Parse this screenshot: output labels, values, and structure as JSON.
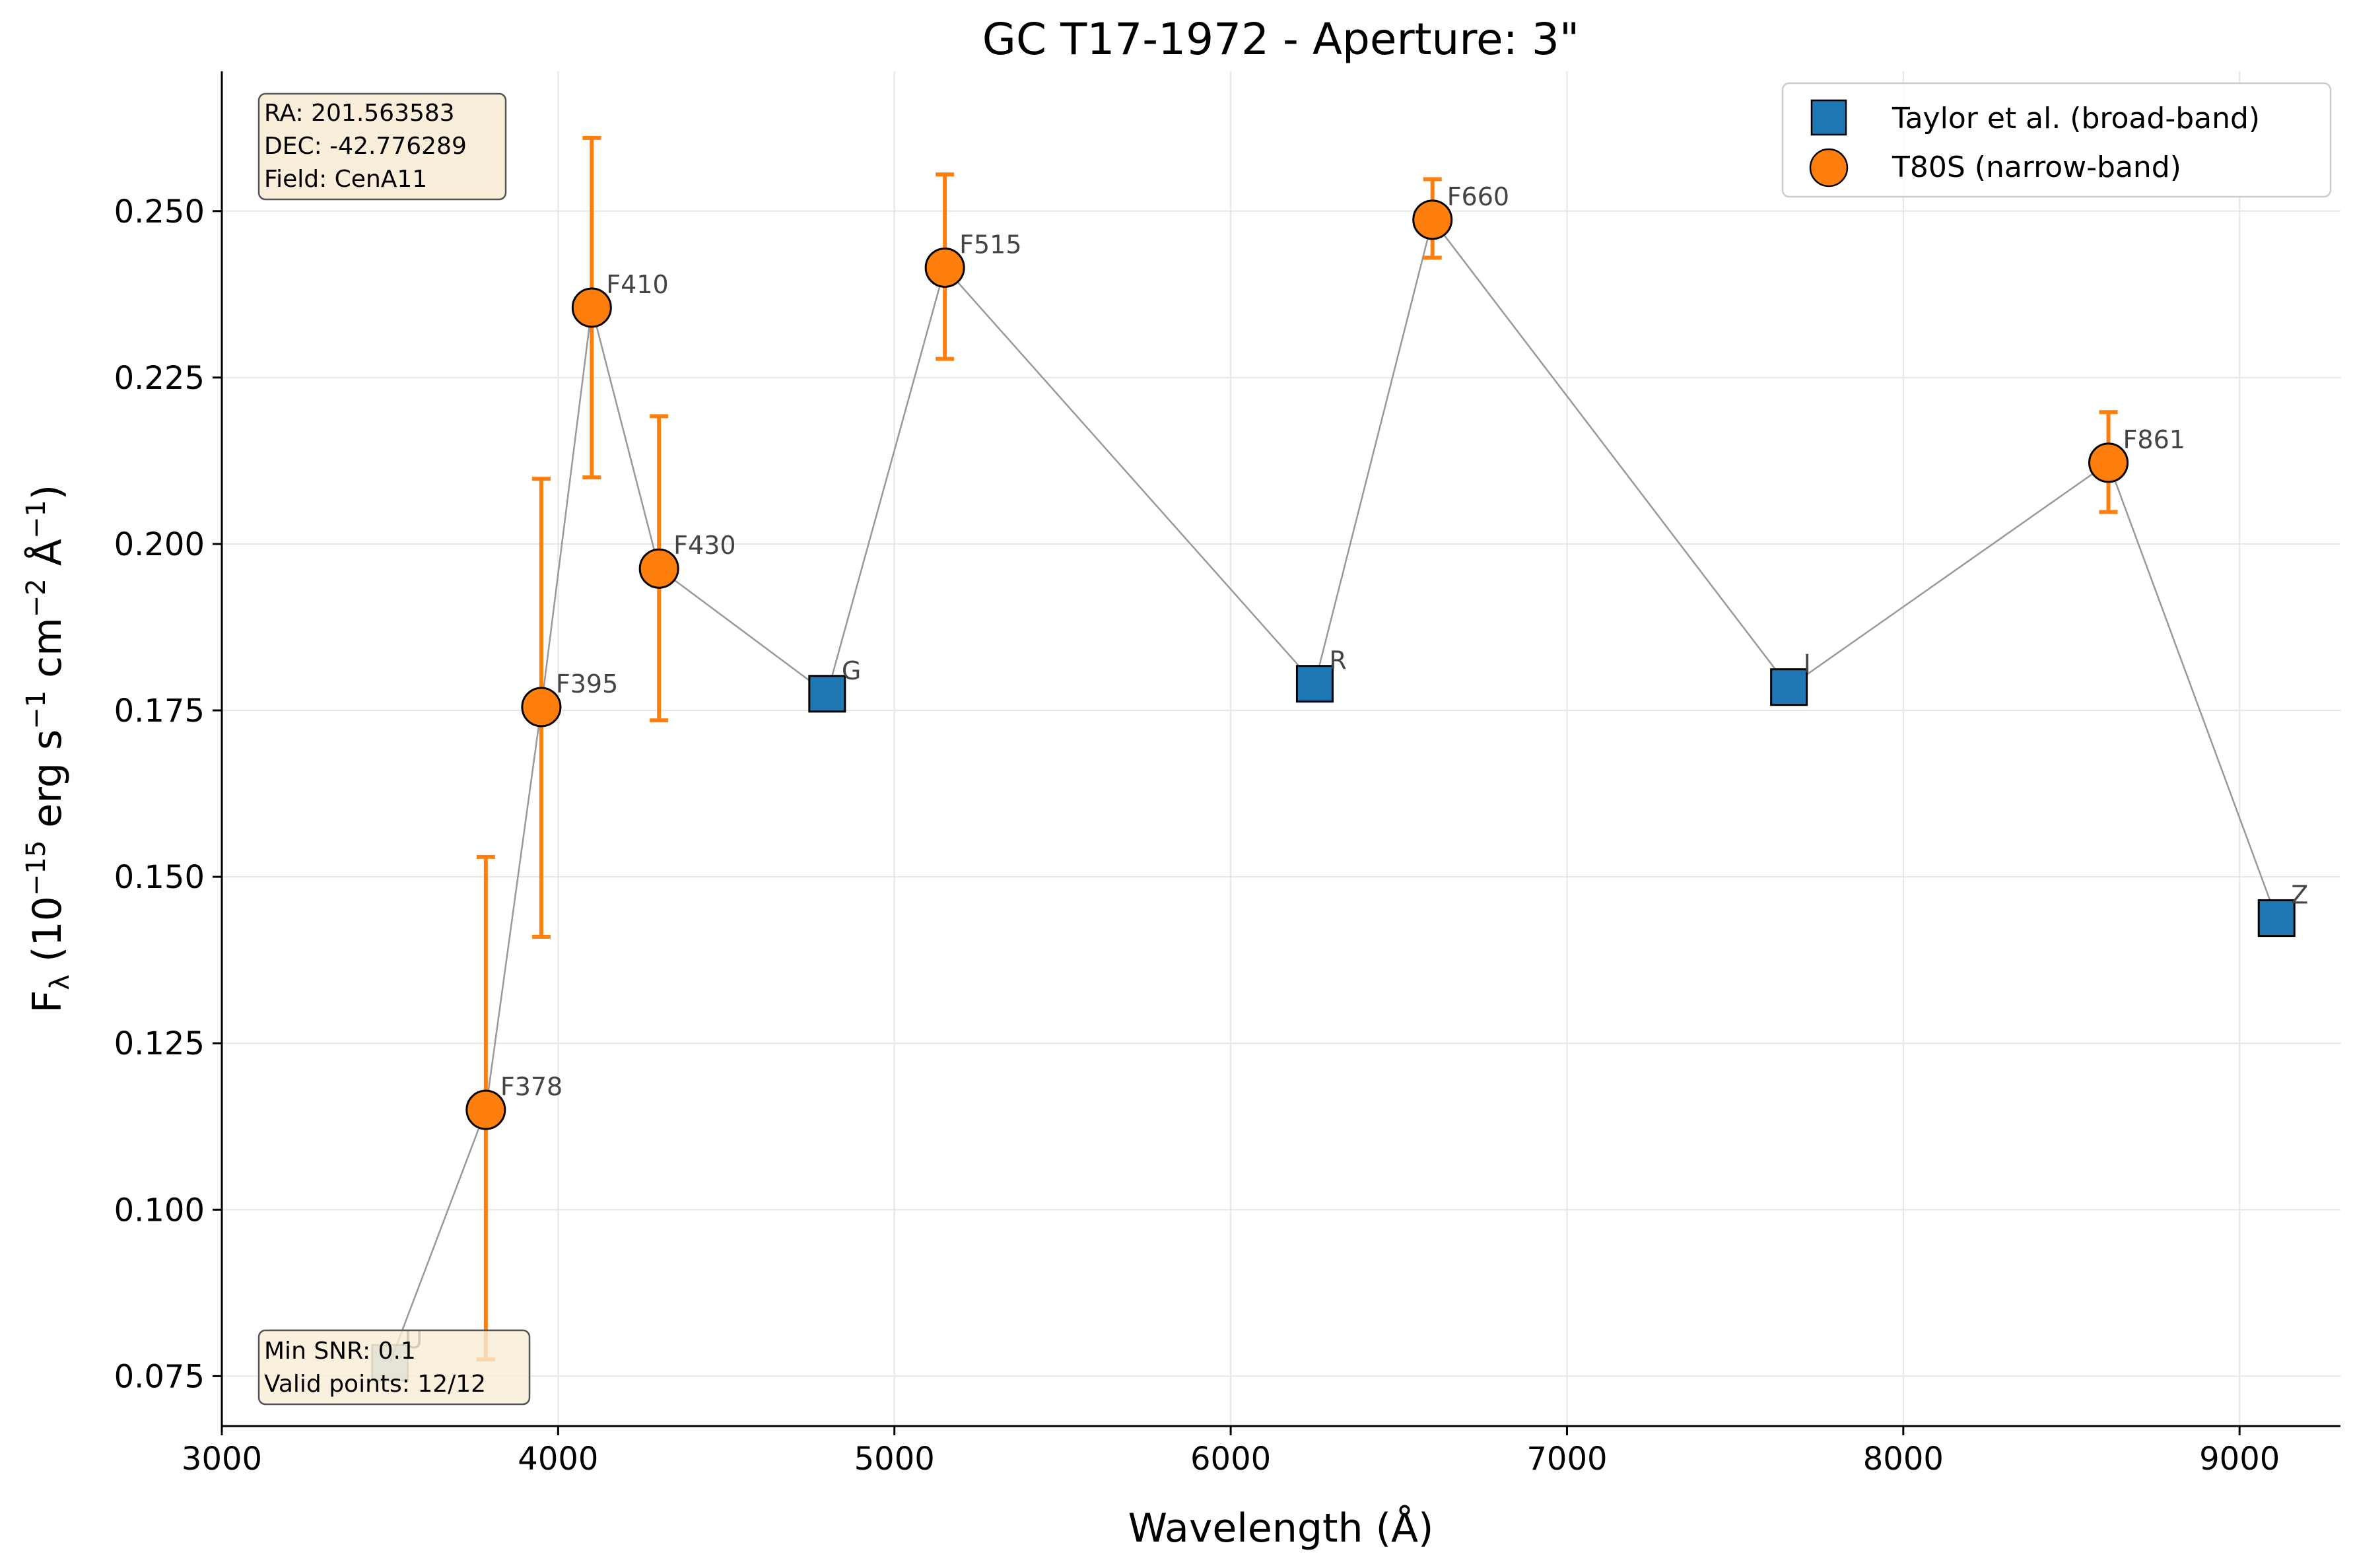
{
  "chart_data": {
    "type": "scatter",
    "title": "GC T17-1972 - Aperture: 3\"",
    "xlabel": "Wavelength (Å)",
    "ylabel": {
      "base": "F",
      "sub": "λ",
      "rest": " (10",
      "exp1": "−15",
      "unit": " erg s",
      "exp2": "−1",
      "cm": " cm",
      "exp3": "−2",
      "ang": " Å",
      "exp4": "−1",
      "close": ")"
    },
    "xlim": [
      3000,
      9300
    ],
    "ylim": [
      0.0675,
      0.271
    ],
    "xticks": [
      3000,
      4000,
      5000,
      6000,
      7000,
      8000,
      9000
    ],
    "yticks": [
      0.075,
      0.1,
      0.125,
      0.15,
      0.175,
      0.2,
      0.225,
      0.25
    ],
    "ytick_labels": [
      "0.075",
      "0.100",
      "0.125",
      "0.150",
      "0.175",
      "0.200",
      "0.225",
      "0.250"
    ],
    "grid": true,
    "legend_position": "top-right",
    "connecting_line_order": [
      "U",
      "F378",
      "F395",
      "F410",
      "F430",
      "G",
      "F515",
      "R",
      "F660",
      "I",
      "F861",
      "Z"
    ],
    "series": [
      {
        "name": "Taylor et al. (broad-band)",
        "marker": "square",
        "color": "#1f77b4",
        "points": [
          {
            "label": "U",
            "x": 3500,
            "y": 0.077,
            "faded": true
          },
          {
            "label": "G",
            "x": 4800,
            "y": 0.1775
          },
          {
            "label": "R",
            "x": 6250,
            "y": 0.179
          },
          {
            "label": "I",
            "x": 7660,
            "y": 0.1785
          },
          {
            "label": "Z",
            "x": 9110,
            "y": 0.1438
          }
        ]
      },
      {
        "name": "T80S (narrow-band)",
        "marker": "circle",
        "color": "#ff7f0e",
        "points": [
          {
            "label": "F378",
            "x": 3785,
            "y": 0.115,
            "err_low": 0.0775,
            "err_high": 0.153
          },
          {
            "label": "F395",
            "x": 3950,
            "y": 0.1755,
            "err_low": 0.141,
            "err_high": 0.2098
          },
          {
            "label": "F410",
            "x": 4100,
            "y": 0.2355,
            "err_low": 0.21,
            "err_high": 0.261
          },
          {
            "label": "F430",
            "x": 4300,
            "y": 0.1963,
            "err_low": 0.1735,
            "err_high": 0.2192
          },
          {
            "label": "F515",
            "x": 5150,
            "y": 0.2415,
            "err_low": 0.2278,
            "err_high": 0.2555
          },
          {
            "label": "F660",
            "x": 6600,
            "y": 0.2487,
            "err_low": 0.243,
            "err_high": 0.2548
          },
          {
            "label": "F861",
            "x": 8610,
            "y": 0.2122,
            "err_low": 0.2048,
            "err_high": 0.2198
          }
        ]
      }
    ]
  },
  "info_box_top": [
    "RA: 201.563583",
    "DEC: -42.776289",
    "Field: CenA11"
  ],
  "info_box_bottom": [
    "Min SNR: 0.1",
    "Valid points: 12/12"
  ],
  "colors": {
    "broadband": "#1f77b4",
    "narrowband": "#ff7f0e",
    "line": "#999999",
    "grid": "#e6e6e6",
    "info_bg": "#f8ecd6"
  }
}
